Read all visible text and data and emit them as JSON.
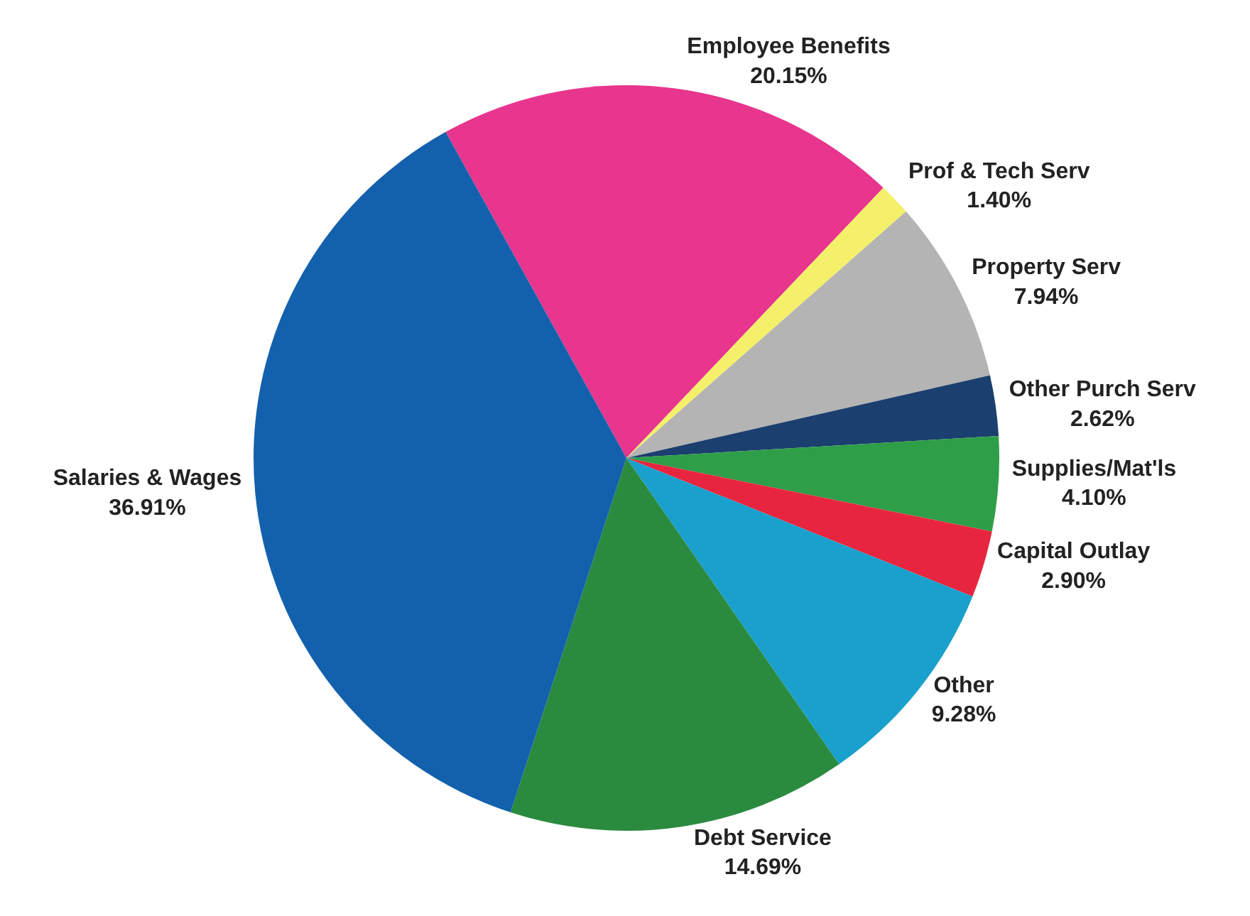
{
  "chart_data": {
    "type": "pie",
    "categories": [
      "Employee Benefits",
      "Prof & Tech Serv",
      "Property Serv",
      "Other Purch Serv",
      "Supplies/Mat'ls",
      "Capital Outlay",
      "Other",
      "Debt Service",
      "Salaries & Wages"
    ],
    "values": [
      20.15,
      1.4,
      7.94,
      2.62,
      4.1,
      2.9,
      9.28,
      14.69,
      36.91
    ],
    "value_labels": [
      "20.15%",
      "1.40%",
      "7.94%",
      "2.62%",
      "4.10%",
      "2.90%",
      "9.28%",
      "14.69%",
      "36.91%"
    ],
    "colors": [
      "#e8358e",
      "#f5f06a",
      "#b4b4b4",
      "#1b3f6e",
      "#2e9e48",
      "#e8253f",
      "#1aa0cc",
      "#2a8a3e",
      "#1361ad"
    ],
    "legend": false
  }
}
